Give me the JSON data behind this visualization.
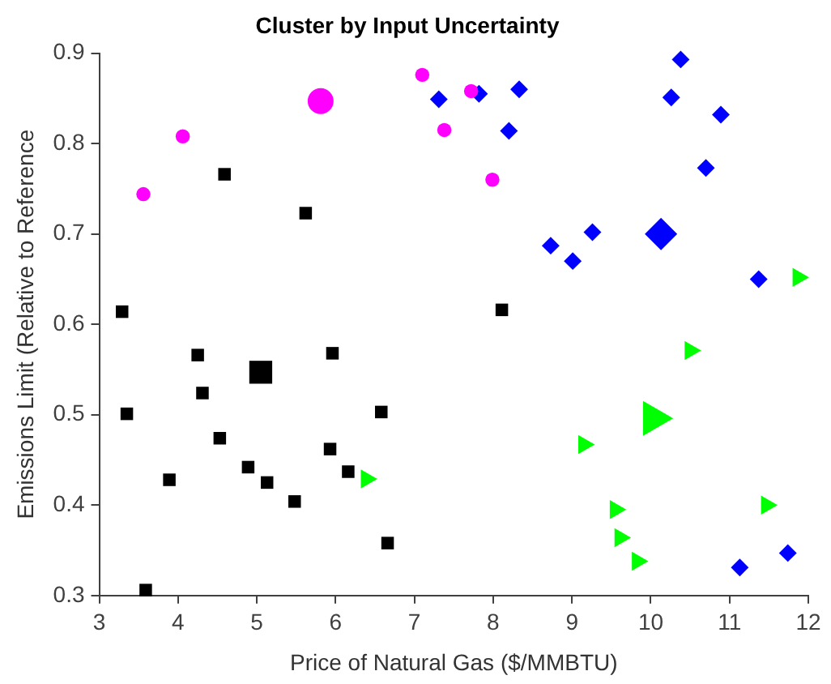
{
  "chart_data": {
    "type": "bubble",
    "title": "Cluster by Input Uncertainty",
    "xlabel": "Price of Natural Gas ($/MMBTU)",
    "ylabel": "Emissions Limit (Relative to Reference",
    "xlim": [
      3,
      12
    ],
    "xticks": [
      3,
      4,
      5,
      6,
      7,
      8,
      9,
      10,
      11,
      12
    ],
    "ylim": [
      0.3,
      0.9
    ],
    "yticks": [
      0.3,
      0.4,
      0.5,
      0.6,
      0.7,
      0.8,
      0.9
    ],
    "grid": false,
    "legend": false,
    "series": [
      {
        "color": "#000000",
        "marker": "square",
        "x": [
          5.05,
          3.29,
          4.59,
          5.62,
          4.25,
          5.96,
          4.31,
          3.35,
          6.58,
          4.53,
          5.93,
          4.89,
          6.16,
          3.89,
          5.13,
          5.48,
          6.66,
          3.59,
          8.11
        ],
        "values": [
          0.547,
          0.614,
          0.766,
          0.723,
          0.566,
          0.568,
          0.524,
          0.501,
          0.503,
          0.474,
          0.462,
          0.442,
          0.437,
          0.428,
          0.425,
          0.404,
          0.358,
          0.306,
          0.616
        ],
        "sizes": [
          1,
          0.3,
          0.3,
          0.3,
          0.3,
          0.3,
          0.3,
          0.3,
          0.3,
          0.3,
          0.3,
          0.3,
          0.3,
          0.3,
          0.3,
          0.3,
          0.3,
          0.3,
          0.3
        ]
      },
      {
        "color": "#ff00ff",
        "marker": "circle",
        "x": [
          5.81,
          7.1,
          4.06,
          3.56,
          7.38,
          7.72,
          7.99
        ],
        "values": [
          0.847,
          0.876,
          0.808,
          0.744,
          0.815,
          0.858,
          0.76
        ],
        "sizes": [
          1,
          0.3,
          0.3,
          0.3,
          0.3,
          0.3,
          0.3
        ]
      },
      {
        "color": "#0000ff",
        "marker": "diamond",
        "x": [
          10.13,
          10.38,
          7.31,
          7.82,
          8.33,
          10.26,
          10.89,
          8.2,
          10.7,
          9.26,
          8.73,
          9.01,
          11.37,
          11.13,
          11.74
        ],
        "values": [
          0.7,
          0.893,
          0.849,
          0.855,
          0.86,
          0.851,
          0.832,
          0.814,
          0.773,
          0.702,
          0.687,
          0.67,
          0.65,
          0.331,
          0.347
        ],
        "sizes": [
          1,
          0.3,
          0.3,
          0.3,
          0.3,
          0.3,
          0.3,
          0.3,
          0.3,
          0.3,
          0.3,
          0.3,
          0.3,
          0.3,
          0.3
        ]
      },
      {
        "color": "#00ff00",
        "marker": "triangle",
        "x": [
          10.03,
          6.39,
          10.5,
          9.15,
          9.55,
          11.47,
          9.61,
          9.83,
          11.87
        ],
        "values": [
          0.496,
          0.429,
          0.571,
          0.467,
          0.395,
          0.4,
          0.364,
          0.338,
          0.652
        ],
        "sizes": [
          1,
          0.3,
          0.3,
          0.3,
          0.3,
          0.3,
          0.3,
          0.3,
          0.3
        ]
      }
    ]
  }
}
